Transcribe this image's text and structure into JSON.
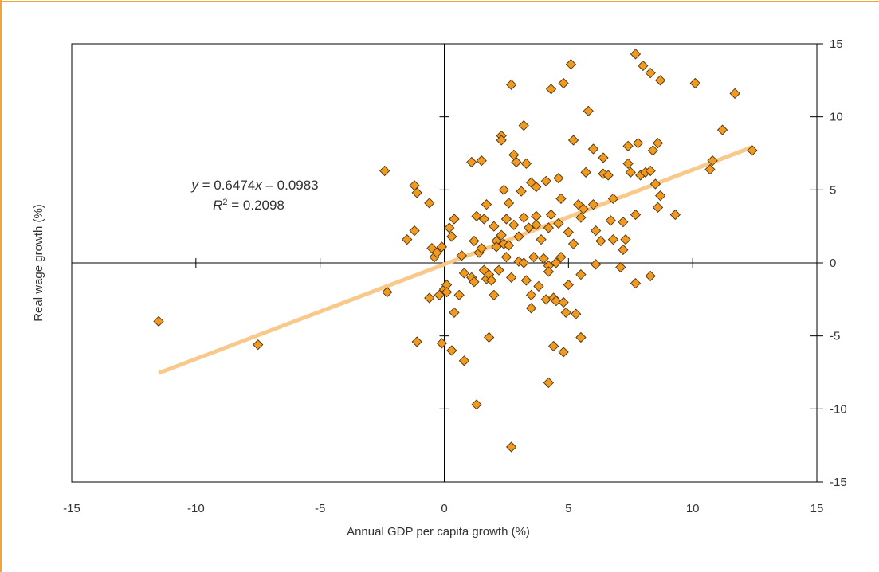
{
  "chart_data": {
    "type": "scatter",
    "title": "",
    "xlabel": "Annual GDP per capita growth (%)",
    "ylabel": "Real wage growth (%)",
    "xlim": [
      -15,
      15
    ],
    "ylim": [
      -15,
      15
    ],
    "x_ticks": [
      "-15",
      "-10",
      "-5",
      "0",
      "5",
      "10",
      "15"
    ],
    "y_ticks": [
      "15",
      "10",
      "5",
      "0",
      "-5",
      "-10",
      "-15"
    ],
    "grid": false,
    "legend": "none",
    "marker": "diamond",
    "colors": {
      "frame": "#f0a53a",
      "marker_fill": "#f29a1f",
      "marker_stroke": "#4a3310",
      "trendline": "#f8c98a",
      "axis": "#000000"
    },
    "trendline": {
      "slope": 0.6474,
      "intercept": -0.0983,
      "x_range": [
        -11.5,
        12.4
      ],
      "equation_prefix": "y",
      "equation_rhs_a": " = 0.6474",
      "equation_var": "x",
      "equation_rhs_b": " – 0.0983",
      "r2_base": "R",
      "r2_sup": "2",
      "r2_value": " = 0.2098"
    },
    "points": [
      {
        "x": -11.5,
        "y": -4.0
      },
      {
        "x": -7.5,
        "y": -5.6
      },
      {
        "x": -2.4,
        "y": 6.3
      },
      {
        "x": -2.3,
        "y": -2.0
      },
      {
        "x": -1.5,
        "y": 1.6
      },
      {
        "x": -1.2,
        "y": 2.2
      },
      {
        "x": -1.2,
        "y": 5.3
      },
      {
        "x": -1.1,
        "y": 4.8
      },
      {
        "x": -1.1,
        "y": -5.4
      },
      {
        "x": -0.6,
        "y": 4.1
      },
      {
        "x": -0.6,
        "y": -2.4
      },
      {
        "x": -0.5,
        "y": 1.0
      },
      {
        "x": -0.4,
        "y": 0.4
      },
      {
        "x": -0.3,
        "y": 0.7
      },
      {
        "x": -0.2,
        "y": -2.2
      },
      {
        "x": -0.1,
        "y": 1.1
      },
      {
        "x": -0.1,
        "y": -5.5
      },
      {
        "x": 0.0,
        "y": -1.8
      },
      {
        "x": 0.1,
        "y": -1.5
      },
      {
        "x": 0.1,
        "y": -2.0
      },
      {
        "x": 0.2,
        "y": 2.4
      },
      {
        "x": 0.3,
        "y": 1.8
      },
      {
        "x": 0.3,
        "y": -6.0
      },
      {
        "x": 0.4,
        "y": 3.0
      },
      {
        "x": 0.4,
        "y": -3.4
      },
      {
        "x": 0.6,
        "y": -2.2
      },
      {
        "x": 0.7,
        "y": 0.5
      },
      {
        "x": 0.8,
        "y": -0.7
      },
      {
        "x": 0.8,
        "y": -6.7
      },
      {
        "x": 1.1,
        "y": 6.9
      },
      {
        "x": 1.1,
        "y": -1.0
      },
      {
        "x": 1.2,
        "y": 1.5
      },
      {
        "x": 1.2,
        "y": -1.3
      },
      {
        "x": 1.3,
        "y": 3.2
      },
      {
        "x": 1.3,
        "y": -9.7
      },
      {
        "x": 1.4,
        "y": 0.7
      },
      {
        "x": 1.5,
        "y": 7.0
      },
      {
        "x": 1.5,
        "y": 1.0
      },
      {
        "x": 1.6,
        "y": 3.0
      },
      {
        "x": 1.6,
        "y": -0.5
      },
      {
        "x": 1.7,
        "y": 4.0
      },
      {
        "x": 1.7,
        "y": -1.1
      },
      {
        "x": 1.8,
        "y": -0.8
      },
      {
        "x": 1.8,
        "y": -5.1
      },
      {
        "x": 1.9,
        "y": -1.2
      },
      {
        "x": 2.0,
        "y": 2.5
      },
      {
        "x": 2.0,
        "y": -2.2
      },
      {
        "x": 2.1,
        "y": 1.5
      },
      {
        "x": 2.1,
        "y": 1.1
      },
      {
        "x": 2.2,
        "y": -0.5
      },
      {
        "x": 2.3,
        "y": 8.7
      },
      {
        "x": 2.3,
        "y": 8.4
      },
      {
        "x": 2.3,
        "y": 1.9
      },
      {
        "x": 2.4,
        "y": 5.0
      },
      {
        "x": 2.4,
        "y": 1.3
      },
      {
        "x": 2.5,
        "y": 0.4
      },
      {
        "x": 2.5,
        "y": 3.0
      },
      {
        "x": 2.6,
        "y": 4.1
      },
      {
        "x": 2.6,
        "y": 1.2
      },
      {
        "x": 2.7,
        "y": 12.2
      },
      {
        "x": 2.7,
        "y": -1.0
      },
      {
        "x": 2.7,
        "y": -12.6
      },
      {
        "x": 2.8,
        "y": 7.4
      },
      {
        "x": 2.8,
        "y": 2.6
      },
      {
        "x": 2.9,
        "y": 6.9
      },
      {
        "x": 3.0,
        "y": 0.1
      },
      {
        "x": 3.0,
        "y": 1.8
      },
      {
        "x": 3.1,
        "y": 4.9
      },
      {
        "x": 3.2,
        "y": 9.4
      },
      {
        "x": 3.2,
        "y": 3.1
      },
      {
        "x": 3.2,
        "y": 0.0
      },
      {
        "x": 3.3,
        "y": 6.8
      },
      {
        "x": 3.3,
        "y": -1.2
      },
      {
        "x": 3.4,
        "y": 2.4
      },
      {
        "x": 3.5,
        "y": 5.5
      },
      {
        "x": 3.5,
        "y": -2.2
      },
      {
        "x": 3.5,
        "y": -3.1
      },
      {
        "x": 3.6,
        "y": 0.4
      },
      {
        "x": 3.7,
        "y": 3.2
      },
      {
        "x": 3.7,
        "y": 2.6
      },
      {
        "x": 3.7,
        "y": 5.2
      },
      {
        "x": 3.8,
        "y": -1.6
      },
      {
        "x": 3.9,
        "y": 1.6
      },
      {
        "x": 4.0,
        "y": 0.3
      },
      {
        "x": 4.1,
        "y": -2.5
      },
      {
        "x": 4.1,
        "y": 5.6
      },
      {
        "x": 4.2,
        "y": 2.4
      },
      {
        "x": 4.2,
        "y": -0.2
      },
      {
        "x": 4.2,
        "y": -0.6
      },
      {
        "x": 4.2,
        "y": -8.2
      },
      {
        "x": 4.3,
        "y": 11.9
      },
      {
        "x": 4.3,
        "y": 3.3
      },
      {
        "x": 4.4,
        "y": -2.4
      },
      {
        "x": 4.4,
        "y": -5.7
      },
      {
        "x": 4.5,
        "y": 0.0
      },
      {
        "x": 4.5,
        "y": -2.6
      },
      {
        "x": 4.6,
        "y": 2.7
      },
      {
        "x": 4.6,
        "y": 5.8
      },
      {
        "x": 4.7,
        "y": 4.4
      },
      {
        "x": 4.7,
        "y": 0.4
      },
      {
        "x": 4.8,
        "y": 12.3
      },
      {
        "x": 4.8,
        "y": -2.7
      },
      {
        "x": 4.8,
        "y": -6.1
      },
      {
        "x": 4.9,
        "y": -3.4
      },
      {
        "x": 5.0,
        "y": 2.1
      },
      {
        "x": 5.0,
        "y": -1.5
      },
      {
        "x": 5.1,
        "y": 13.6
      },
      {
        "x": 5.2,
        "y": 8.4
      },
      {
        "x": 5.2,
        "y": 1.3
      },
      {
        "x": 5.3,
        "y": -3.5
      },
      {
        "x": 5.4,
        "y": 4.0
      },
      {
        "x": 5.5,
        "y": 3.1
      },
      {
        "x": 5.5,
        "y": -0.8
      },
      {
        "x": 5.5,
        "y": -5.1
      },
      {
        "x": 5.6,
        "y": 3.7
      },
      {
        "x": 5.7,
        "y": 6.2
      },
      {
        "x": 5.8,
        "y": 10.4
      },
      {
        "x": 6.0,
        "y": 7.8
      },
      {
        "x": 6.0,
        "y": 4.0
      },
      {
        "x": 6.1,
        "y": 2.2
      },
      {
        "x": 6.1,
        "y": -0.1
      },
      {
        "x": 6.3,
        "y": 1.5
      },
      {
        "x": 6.4,
        "y": 7.2
      },
      {
        "x": 6.4,
        "y": 6.1
      },
      {
        "x": 6.6,
        "y": 6.0
      },
      {
        "x": 6.7,
        "y": 2.9
      },
      {
        "x": 6.8,
        "y": 4.4
      },
      {
        "x": 6.8,
        "y": 1.6
      },
      {
        "x": 7.1,
        "y": -0.3
      },
      {
        "x": 7.2,
        "y": 0.9
      },
      {
        "x": 7.2,
        "y": 2.8
      },
      {
        "x": 7.3,
        "y": 1.6
      },
      {
        "x": 7.4,
        "y": 6.8
      },
      {
        "x": 7.4,
        "y": 8.0
      },
      {
        "x": 7.5,
        "y": 6.2
      },
      {
        "x": 7.7,
        "y": 14.3
      },
      {
        "x": 7.7,
        "y": 3.3
      },
      {
        "x": 7.7,
        "y": -1.4
      },
      {
        "x": 7.8,
        "y": 8.2
      },
      {
        "x": 7.9,
        "y": 6.0
      },
      {
        "x": 8.0,
        "y": 13.5
      },
      {
        "x": 8.1,
        "y": 6.2
      },
      {
        "x": 8.3,
        "y": 13.0
      },
      {
        "x": 8.3,
        "y": 6.3
      },
      {
        "x": 8.4,
        "y": 7.7
      },
      {
        "x": 8.5,
        "y": 5.4
      },
      {
        "x": 8.6,
        "y": 8.2
      },
      {
        "x": 8.6,
        "y": 3.8
      },
      {
        "x": 8.7,
        "y": 4.6
      },
      {
        "x": 8.7,
        "y": 12.5
      },
      {
        "x": 8.3,
        "y": -0.9
      },
      {
        "x": 9.3,
        "y": 3.3
      },
      {
        "x": 10.1,
        "y": 12.3
      },
      {
        "x": 10.7,
        "y": 6.4
      },
      {
        "x": 10.8,
        "y": 7.0
      },
      {
        "x": 11.2,
        "y": 9.1
      },
      {
        "x": 11.7,
        "y": 11.6
      },
      {
        "x": 12.4,
        "y": 7.7
      }
    ]
  }
}
